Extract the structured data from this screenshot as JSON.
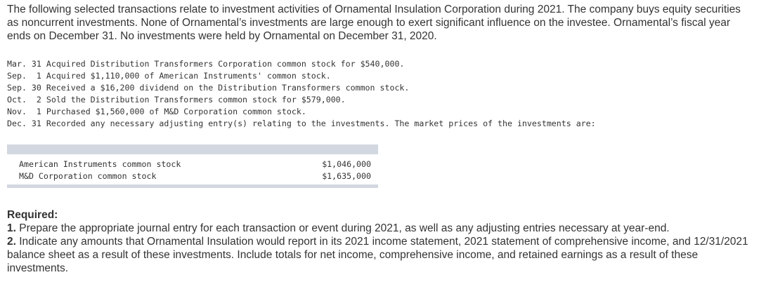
{
  "intro": "The following selected transactions relate to investment activities of Ornamental Insulation Corporation during 2021. The company buys equity securities as noncurrent investments. None of Ornamental’s investments are large enough to exert significant influence on the investee. Ornamental’s fiscal year ends on December 31. No investments were held by Ornamental on December 31, 2020.",
  "transactions": [
    {
      "date": "Mar. 31",
      "text": "Acquired Distribution Transformers Corporation common stock for $540,000."
    },
    {
      "date": "Sep.  1",
      "text": "Acquired $1,110,000 of American Instruments' common stock."
    },
    {
      "date": "Sep. 30",
      "text": "Received a $16,200 dividend on the Distribution Transformers common stock."
    },
    {
      "date": "Oct.  2",
      "text": "Sold the Distribution Transformers common stock for $579,000."
    },
    {
      "date": "Nov.  1",
      "text": "Purchased $1,560,000 of M&D Corporation common stock."
    },
    {
      "date": "Dec. 31",
      "text": "Recorded any necessary adjusting entry(s) relating to the investments. The market prices of the investments are:"
    }
  ],
  "market_prices": [
    {
      "name": "American Instruments common stock",
      "value": "$1,046,000"
    },
    {
      "name": "M&D Corporation common stock",
      "value": "$1,635,000"
    }
  ],
  "required": {
    "heading": "Required:",
    "items": [
      {
        "number": "1.",
        "text": "Prepare the appropriate journal entry for each transaction or event during 2021, as well as any adjusting entries necessary at year-end."
      },
      {
        "number": "2.",
        "text": "Indicate any amounts that Ornamental Insulation would report in its 2021 income statement, 2021 statement of comprehensive income, and 12/31/2021 balance sheet as a result of these investments. Include totals for net income, comprehensive income, and retained earnings as a result of these investments."
      }
    ]
  }
}
